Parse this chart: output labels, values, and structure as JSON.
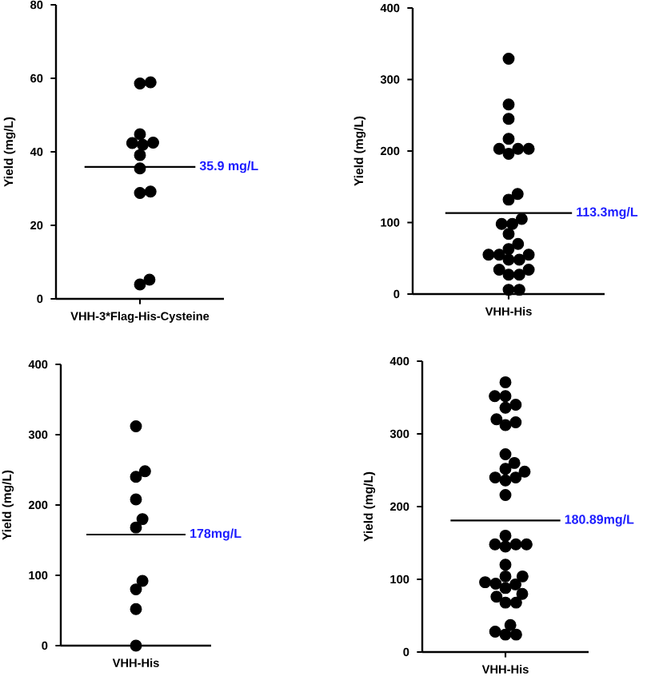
{
  "chart_data": [
    {
      "type": "scatter",
      "categories": [
        "VHH-3*Flag-His-Cysteine"
      ],
      "ylabel": "Yield (mg/L)",
      "ylim": [
        0,
        80
      ],
      "yticks": [
        0,
        20,
        40,
        60,
        80
      ],
      "marker": "circle",
      "series": [
        {
          "color": "#000000",
          "x": [
            "VHH-3*Flag-His-Cysteine",
            "VHH-3*Flag-His-Cysteine",
            "VHH-3*Flag-His-Cysteine",
            "VHH-3*Flag-His-Cysteine",
            "VHH-3*Flag-His-Cysteine",
            "VHH-3*Flag-His-Cysteine",
            "VHH-3*Flag-His-Cysteine",
            "VHH-3*Flag-His-Cysteine",
            "VHH-3*Flag-His-Cysteine",
            "VHH-3*Flag-His-Cysteine",
            "VHH-3*Flag-His-Cysteine",
            "VHH-3*Flag-His-Cysteine"
          ],
          "values": [
            58.9,
            58.6,
            44.8,
            42.5,
            41.9,
            42.4,
            39.1,
            35.5,
            29.2,
            28.8,
            3.9,
            5.2
          ]
        }
      ],
      "ref_lines": [
        {
          "axis": "y",
          "value": 35.9,
          "label": "35.9 mg/L"
        }
      ]
    },
    {
      "type": "scatter",
      "categories": [
        "VHH-His"
      ],
      "ylabel": "Yield (mg/L)",
      "ylim": [
        0,
        400
      ],
      "yticks": [
        0,
        100,
        200,
        300,
        400
      ],
      "marker": "circle",
      "series": [
        {
          "color": "#000000",
          "x": [
            "VHH-His",
            "VHH-His",
            "VHH-His",
            "VHH-His",
            "VHH-His",
            "VHH-His",
            "VHH-His",
            "VHH-His",
            "VHH-His",
            "VHH-His",
            "VHH-His",
            "VHH-His",
            "VHH-His",
            "VHH-His",
            "VHH-His",
            "VHH-His",
            "VHH-His",
            "VHH-His",
            "VHH-His",
            "VHH-His",
            "VHH-His",
            "VHH-His",
            "VHH-His",
            "VHH-His",
            "VHH-His",
            "VHH-His",
            "VHH-His"
          ],
          "values": [
            329,
            265,
            245,
            217,
            203,
            203,
            203,
            196,
            140,
            132,
            105,
            98,
            98,
            84,
            70,
            63,
            55,
            55,
            55,
            48,
            48,
            34,
            34,
            27,
            27,
            6,
            6
          ]
        }
      ],
      "ref_lines": [
        {
          "axis": "y",
          "value": 113.3,
          "label": "113.3mg/L"
        }
      ]
    },
    {
      "type": "scatter",
      "categories": [
        "VHH-His"
      ],
      "ylabel": "Yield (mg/L)",
      "ylim": [
        0,
        400
      ],
      "yticks": [
        0,
        100,
        200,
        300,
        400
      ],
      "marker": "circle",
      "series": [
        {
          "color": "#000000",
          "x": [
            "VHH-His",
            "VHH-His",
            "VHH-His",
            "VHH-His",
            "VHH-His",
            "VHH-His",
            "VHH-His",
            "VHH-His",
            "VHH-His",
            "VHH-His"
          ],
          "values": [
            312,
            248,
            240,
            208,
            180,
            168,
            92,
            80,
            52,
            0
          ]
        }
      ],
      "ref_lines": [
        {
          "axis": "y",
          "value": 158,
          "label": "178mg/L"
        }
      ]
    },
    {
      "type": "scatter",
      "categories": [
        "VHH-His"
      ],
      "ylabel": "Yield (mg/L)",
      "ylim": [
        0,
        400
      ],
      "yticks": [
        0,
        100,
        200,
        300,
        400
      ],
      "marker": "circle",
      "series": [
        {
          "color": "#000000",
          "x": [
            "VHH-His",
            "VHH-His",
            "VHH-His",
            "VHH-His",
            "VHH-His",
            "VHH-His",
            "VHH-His",
            "VHH-His",
            "VHH-His",
            "VHH-His",
            "VHH-His",
            "VHH-His",
            "VHH-His",
            "VHH-His",
            "VHH-His",
            "VHH-His",
            "VHH-His",
            "VHH-His",
            "VHH-His",
            "VHH-His",
            "VHH-His",
            "VHH-His",
            "VHH-His",
            "VHH-His",
            "VHH-His",
            "VHH-His",
            "VHH-His",
            "VHH-His",
            "VHH-His",
            "VHH-His",
            "VHH-His",
            "VHH-His",
            "VHH-His",
            "VHH-His",
            "VHH-His",
            "VHH-His"
          ],
          "values": [
            371,
            352,
            352,
            340,
            336,
            320,
            316,
            312,
            272,
            260,
            252,
            248,
            240,
            240,
            236,
            216,
            160,
            148,
            148,
            148,
            145,
            120,
            104,
            104,
            93,
            94,
            96,
            88,
            80,
            76,
            68,
            68,
            37,
            28,
            24,
            24
          ]
        }
      ],
      "ref_lines": [
        {
          "axis": "y",
          "value": 180.89,
          "label": "180.89mg/L"
        }
      ]
    }
  ]
}
